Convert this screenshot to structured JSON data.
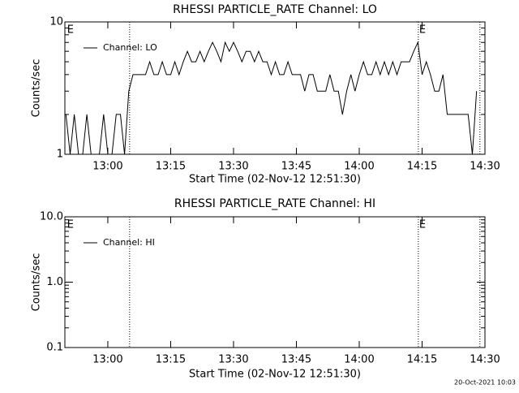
{
  "chart_data": [
    {
      "type": "line",
      "title": "RHESSI PARTICLE_RATE Channel: LO",
      "xlabel": "Start Time (02-Nov-12 12:51:30)",
      "ylabel": "Counts/sec",
      "log_y": true,
      "legend": "upper left",
      "x": [
        770,
        771,
        772,
        773,
        774,
        775,
        776,
        777,
        778,
        779,
        780,
        781,
        782,
        783,
        784,
        785,
        786,
        787,
        788,
        789,
        790,
        791,
        792,
        793,
        794,
        795,
        796,
        797,
        798,
        799,
        800,
        801,
        802,
        803,
        804,
        805,
        806,
        807,
        808,
        809,
        810,
        811,
        812,
        813,
        814,
        815,
        816,
        817,
        818,
        819,
        820,
        821,
        822,
        823,
        824,
        825,
        826,
        827,
        828,
        829,
        830,
        831,
        832,
        833,
        834,
        835,
        836,
        837,
        838,
        839,
        840,
        841,
        842,
        843,
        844,
        845,
        846,
        847,
        848,
        849,
        850,
        851,
        852,
        853,
        854,
        855,
        856,
        857,
        858,
        859,
        860,
        861,
        862,
        863,
        864,
        865,
        866,
        867,
        868
      ],
      "series": [
        {
          "name": "Channel: LO",
          "color": "#000000",
          "values": [
            2,
            1,
            2,
            1,
            1,
            2,
            1,
            1,
            1,
            2,
            1,
            1,
            2,
            2,
            1,
            3,
            4,
            4,
            4,
            4,
            5,
            4,
            4,
            5,
            4,
            4,
            5,
            4,
            5,
            6,
            5,
            5,
            6,
            5,
            6,
            7,
            6,
            5,
            7,
            6,
            7,
            6,
            5,
            6,
            6,
            5,
            6,
            5,
            5,
            4,
            5,
            4,
            4,
            5,
            4,
            4,
            4,
            3,
            4,
            4,
            3,
            3,
            3,
            4,
            3,
            3,
            2,
            3,
            4,
            3,
            4,
            5,
            4,
            4,
            5,
            4,
            5,
            4,
            5,
            4,
            5,
            5,
            5,
            6,
            7,
            4,
            5,
            4,
            3,
            3,
            4,
            2,
            2,
            2,
            2,
            2,
            2,
            1,
            3
          ]
        }
      ],
      "xlim": [
        769.75,
        870
      ],
      "xticks": [
        {
          "value": 780,
          "label": "13:00"
        },
        {
          "value": 795,
          "label": "13:15"
        },
        {
          "value": 810,
          "label": "13:30"
        },
        {
          "value": 825,
          "label": "13:45"
        },
        {
          "value": 840,
          "label": "14:00"
        },
        {
          "value": 855,
          "label": "14:15"
        },
        {
          "value": 870,
          "label": "14:30"
        }
      ],
      "ylim": [
        1,
        10
      ],
      "yticks": [
        1,
        10
      ],
      "yminorticks": [
        2,
        3,
        4,
        5,
        6,
        7,
        8,
        9
      ],
      "vlines": [
        785.2,
        854.1,
        868.8
      ],
      "annotations": [
        {
          "text": "E",
          "x": 770.1
        },
        {
          "text": "E",
          "x": 854.1
        }
      ]
    },
    {
      "type": "line",
      "title": "RHESSI PARTICLE_RATE Channel: HI",
      "xlabel": "Start Time (02-Nov-12 12:51:30)",
      "ylabel": "Counts/sec",
      "log_y": true,
      "legend": "upper left",
      "x": [],
      "series": [
        {
          "name": "Channel: HI",
          "color": "#000000",
          "values": []
        }
      ],
      "xlim": [
        769.75,
        870
      ],
      "xticks": [
        {
          "value": 780,
          "label": "13:00"
        },
        {
          "value": 795,
          "label": "13:15"
        },
        {
          "value": 810,
          "label": "13:30"
        },
        {
          "value": 825,
          "label": "13:45"
        },
        {
          "value": 840,
          "label": "14:00"
        },
        {
          "value": 855,
          "label": "14:15"
        },
        {
          "value": 870,
          "label": "14:30"
        }
      ],
      "ylim": [
        0.1,
        10
      ],
      "yticks": [
        {
          "value": 0.1,
          "label": "0.1"
        },
        {
          "value": 1,
          "label": "1.0"
        },
        {
          "value": 10,
          "label": "10.0"
        }
      ],
      "yminorticks": [
        0.2,
        0.3,
        0.4,
        0.5,
        0.6,
        0.7,
        0.8,
        0.9,
        2,
        3,
        4,
        5,
        6,
        7,
        8,
        9
      ],
      "vlines": [
        785.2,
        854.1,
        868.8
      ],
      "annotations": [
        {
          "text": "E",
          "x": 770.1
        },
        {
          "text": "E",
          "x": 854.1
        }
      ]
    }
  ],
  "footer": "20-Oct-2021 10:03"
}
